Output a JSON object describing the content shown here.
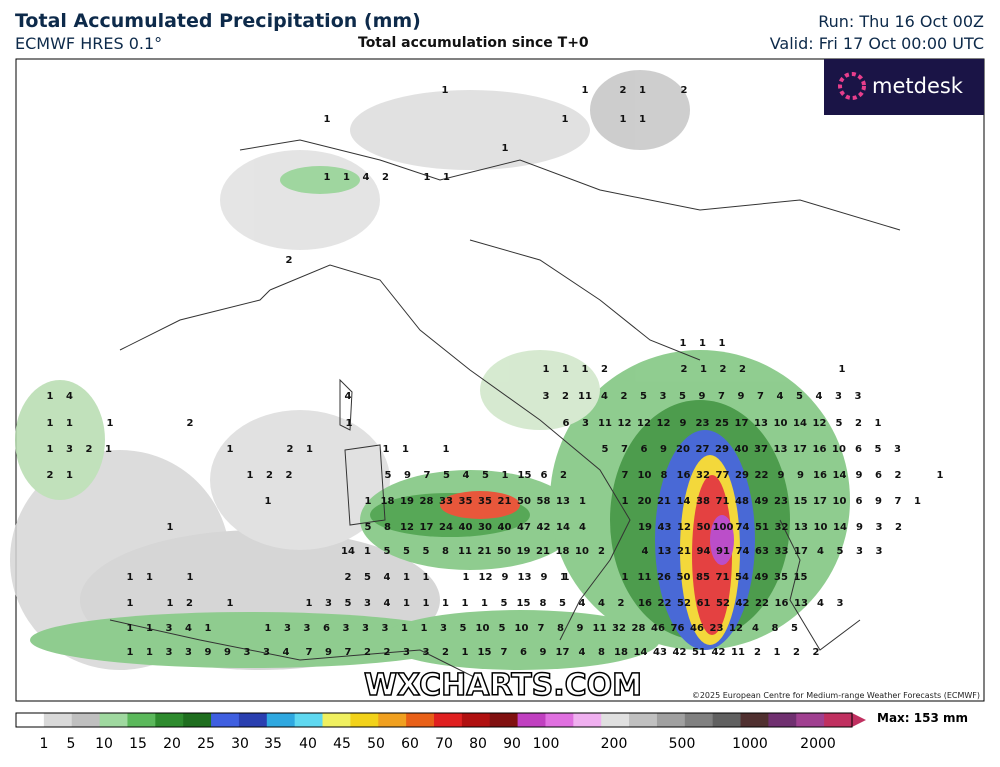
{
  "header": {
    "title": "Total Accumulated Precipitation (mm)",
    "model": "ECMWF HRES 0.1°",
    "subtitle": "Total accumulation since T+0",
    "run": "Run: Thu 16 Oct 00Z",
    "valid": "Valid: Fri 17 Oct 00:00 UTC",
    "logo": "metdesk"
  },
  "map": {
    "watermark": "WXCHARTS.COM",
    "copyright": "©2025 European Centre for Medium-range Weather Forecasts (ECMWF)",
    "labels": [
      [
        1
      ],
      [
        1
      ],
      [
        2,
        1
      ],
      [
        2
      ],
      [
        1
      ],
      [
        1
      ],
      [
        1,
        1
      ],
      [
        1
      ],
      [
        1,
        1,
        4,
        2
      ],
      [
        1,
        1
      ],
      [
        2
      ],
      [
        1,
        1,
        1
      ],
      [
        1,
        1,
        1,
        2
      ],
      [
        2,
        1,
        2,
        2
      ],
      [
        1
      ],
      [
        1,
        4
      ],
      [
        4
      ],
      [
        3,
        2,
        11,
        4,
        2,
        5,
        3,
        5,
        9,
        7,
        9,
        7,
        4,
        5,
        4,
        3,
        3
      ],
      [
        1,
        1
      ],
      [
        1
      ],
      [
        2
      ],
      [
        1
      ],
      [
        6,
        3,
        11,
        12,
        12,
        12,
        9,
        23,
        25,
        17,
        13,
        10,
        14,
        12,
        5,
        2,
        1
      ],
      [
        1,
        3,
        2,
        1
      ],
      [
        1
      ],
      [
        2,
        1
      ],
      [
        1,
        1
      ],
      [
        1
      ],
      [
        5,
        7,
        6,
        9,
        20,
        27,
        29,
        40,
        37,
        13,
        17,
        16,
        10,
        6,
        5,
        3
      ],
      [
        2,
        1
      ],
      [
        1,
        2,
        2
      ],
      [
        5,
        9,
        7,
        5,
        4,
        5,
        1,
        15,
        6,
        2
      ],
      [
        7,
        10,
        8,
        16,
        32,
        77,
        29,
        22,
        9,
        9,
        16,
        14,
        9,
        6,
        2
      ],
      [
        1
      ],
      [
        1
      ],
      [
        1,
        18,
        19,
        28,
        33,
        35,
        35,
        21,
        50,
        58,
        13,
        1
      ],
      [
        1,
        20,
        21,
        14,
        38,
        71,
        48,
        49,
        23,
        15,
        17,
        10,
        6,
        9,
        7,
        1
      ],
      [
        1
      ],
      [
        5,
        8,
        12,
        17,
        24,
        40,
        30,
        40,
        47,
        42,
        14,
        4
      ],
      [
        19,
        43,
        12,
        50,
        100,
        74,
        51,
        32,
        13,
        10,
        14,
        9,
        3,
        2
      ],
      [
        14,
        1,
        5,
        5,
        5,
        8,
        11,
        21,
        50,
        19,
        21,
        18,
        10,
        2
      ],
      [
        4,
        13,
        21,
        94,
        91,
        74,
        63,
        33,
        17,
        4,
        5,
        3,
        3
      ],
      [
        1,
        1
      ],
      [
        1
      ],
      [
        2,
        5,
        4,
        1,
        1
      ],
      [
        1,
        12,
        9,
        13,
        9,
        1
      ],
      [
        1
      ],
      [
        1,
        11,
        26,
        50,
        85,
        71,
        54,
        49,
        35,
        15
      ],
      [
        1
      ],
      [
        1,
        2
      ],
      [
        1
      ],
      [
        1,
        3,
        5,
        3,
        4,
        1,
        1,
        1,
        1,
        1,
        5,
        15,
        8,
        5,
        4,
        4,
        2
      ],
      [
        16,
        22,
        52,
        61,
        52,
        42,
        22,
        16,
        13,
        4,
        3
      ],
      [
        1,
        1,
        3,
        4,
        1
      ],
      [
        1,
        3,
        3,
        6,
        3,
        3,
        3,
        1,
        1,
        3,
        5,
        10,
        5,
        10,
        7,
        8,
        9,
        11,
        32,
        28,
        46,
        76,
        46,
        23,
        12,
        4,
        8,
        5
      ],
      [
        1,
        1,
        3,
        3,
        9,
        9,
        3,
        3,
        4
      ],
      [
        7,
        9,
        7,
        2,
        2,
        3,
        3,
        2,
        1,
        15,
        7,
        6,
        9,
        17,
        4,
        8,
        18,
        14,
        43,
        42,
        51,
        42,
        11,
        2,
        1,
        2,
        2
      ]
    ]
  },
  "legend": {
    "max": "Max: 153 mm",
    "ticks": [
      1,
      5,
      10,
      15,
      20,
      25,
      30,
      35,
      40,
      45,
      50,
      60,
      70,
      80,
      90,
      100,
      200,
      500,
      1000,
      2000
    ]
  }
}
